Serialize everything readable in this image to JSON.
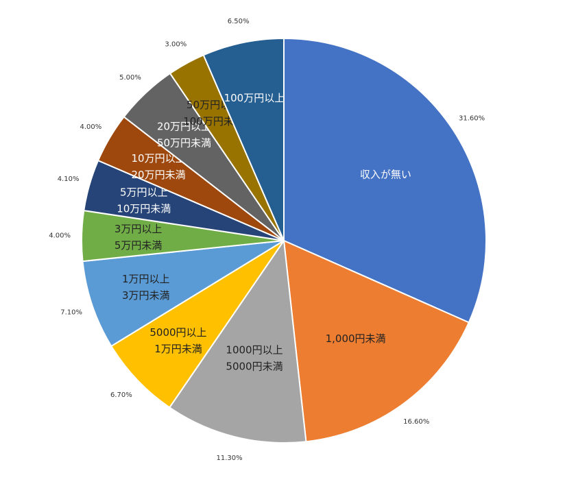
{
  "chart_data": {
    "type": "pie",
    "categories": [
      [
        "収入が無い"
      ],
      [
        "1,000円未満"
      ],
      [
        "1000円以上",
        "5000円未満"
      ],
      [
        "5000円以上",
        "1万円未満"
      ],
      [
        "1万円以上",
        "3万円未満"
      ],
      [
        "3万円以上",
        "5万円未満"
      ],
      [
        "5万円以上",
        "10万円未満"
      ],
      [
        "10万円以上",
        "20万円未満"
      ],
      [
        "20万円以上",
        "50万円未満"
      ],
      [
        "50万円以上",
        "100万円未満"
      ],
      [
        "100万円以上"
      ]
    ],
    "values": [
      31.6,
      16.6,
      11.3,
      6.7,
      7.1,
      4.0,
      4.1,
      4.0,
      5.0,
      3.0,
      6.5
    ],
    "value_labels": [
      "31.60%",
      "16.60%",
      "11.30%",
      "6.70%",
      "7.10%",
      "4.00%",
      "4.10%",
      "4.00%",
      "5.00%",
      "3.00%",
      "6.50%"
    ],
    "colors": [
      "#4472c4",
      "#ed7d31",
      "#a5a5a5",
      "#ffc000",
      "#5b9bd5",
      "#70ad47",
      "#264478",
      "#9e480e",
      "#636363",
      "#997300",
      "#255e91"
    ]
  }
}
